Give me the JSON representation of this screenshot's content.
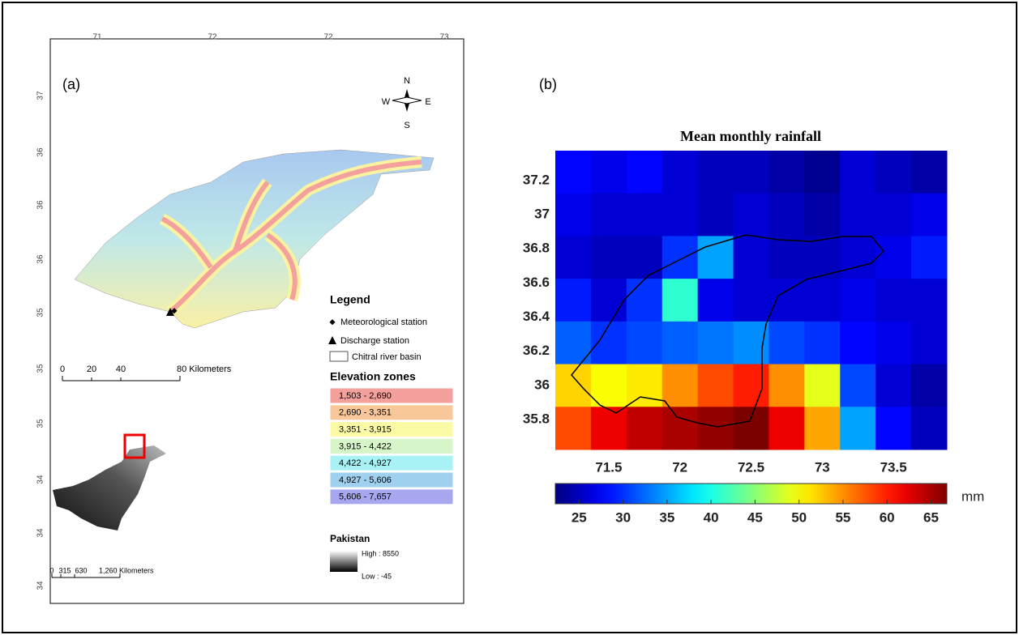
{
  "panel_a": {
    "label": "(a)",
    "top_ticks": [
      "71",
      "72",
      "72",
      "73"
    ],
    "left_ticks": [
      "37",
      "36",
      "36",
      "36",
      "35",
      "35",
      "35",
      "34",
      "34",
      "34"
    ],
    "compass": {
      "n": "N",
      "s": "S",
      "w": "W",
      "e": "E"
    },
    "scale_bar": [
      "0",
      "20",
      "40",
      "80 Kilometers"
    ],
    "legend": {
      "title": "Legend",
      "items": [
        "Meteorological station",
        "Discharge station",
        "Chitral river basin"
      ]
    },
    "elevation": {
      "title": "Elevation zones",
      "zones": [
        {
          "label": "1,503 - 2,690",
          "color": "#f4a09c"
        },
        {
          "label": "2,690 - 3,351",
          "color": "#f8c79a"
        },
        {
          "label": "3,351 - 3,915",
          "color": "#fbfba6"
        },
        {
          "label": "3,915 - 4,422",
          "color": "#d6f5c8"
        },
        {
          "label": "4,422 - 4,927",
          "color": "#a8f2f6"
        },
        {
          "label": "4,927 - 5,606",
          "color": "#9fd0f0"
        },
        {
          "label": "5,606 - 7,657",
          "color": "#a7a7f0"
        }
      ]
    },
    "pakistan": {
      "title": "Pakistan",
      "high": "High : 8550",
      "low": "Low : -45",
      "scale_bar": [
        "0",
        "315",
        "630",
        "1,260 Kilometers"
      ]
    }
  },
  "chart_data": {
    "type": "heatmap",
    "label": "(b)",
    "title": "Mean monthly rainfall",
    "x": [
      71.25,
      71.5,
      71.75,
      72,
      72.25,
      72.5,
      72.75,
      73,
      73.25,
      73.5,
      73.75
    ],
    "y": [
      37.25,
      37,
      36.75,
      36.5,
      36.25,
      36,
      35.75
    ],
    "values": [
      [
        28,
        27,
        28,
        26,
        25,
        25,
        24,
        23,
        26,
        25,
        24
      ],
      [
        27,
        26,
        26,
        26,
        25,
        26,
        25,
        24,
        26,
        26,
        27
      ],
      [
        26,
        25,
        25,
        30,
        35,
        26,
        25,
        25,
        26,
        27,
        29
      ],
      [
        29,
        26,
        30,
        41,
        27,
        26,
        26,
        26,
        27,
        26,
        26
      ],
      [
        32,
        30,
        31,
        32,
        33,
        34,
        31,
        30,
        28,
        27,
        26
      ],
      [
        52,
        50,
        51,
        55,
        58,
        60,
        55,
        49,
        31,
        26,
        24
      ],
      [
        58,
        62,
        64,
        65,
        66,
        67,
        62,
        54,
        35,
        28,
        25
      ]
    ],
    "xlim": [
      71.125,
      73.875
    ],
    "ylim": [
      35.625,
      37.375
    ],
    "xticks": [
      71.5,
      72,
      72.5,
      73,
      73.5
    ],
    "yticks": [
      37.2,
      37,
      36.8,
      36.6,
      36.4,
      36.2,
      36,
      35.8
    ],
    "colorbar": {
      "lim": [
        22.3,
        66.8
      ],
      "ticks": [
        25,
        30,
        35,
        40,
        45,
        50,
        55,
        60,
        65
      ],
      "unit": "mm"
    }
  }
}
